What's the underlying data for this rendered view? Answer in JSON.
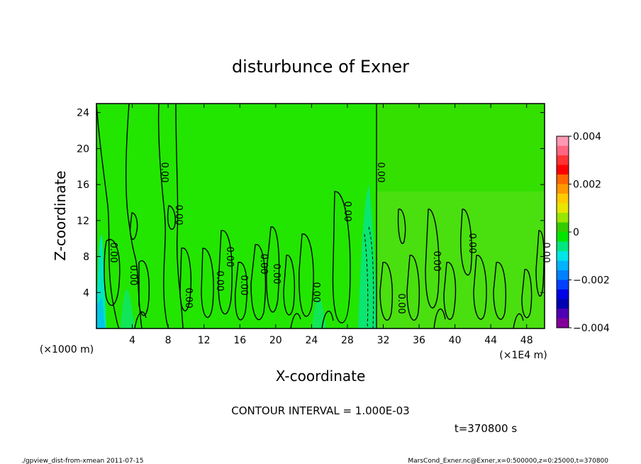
{
  "chart_data": {
    "type": "heatmap",
    "title": "disturbunce of Exner",
    "xlabel": "X-coordinate",
    "ylabel": "Z-coordinate",
    "x_unit_note": "(×1E4 m)",
    "y_unit_note": "(×1000 m)",
    "xlim": [
      0,
      50
    ],
    "ylim": [
      0,
      25
    ],
    "x_ticks": [
      "4",
      "8",
      "12",
      "16",
      "20",
      "24",
      "28",
      "32",
      "36",
      "40",
      "44",
      "48"
    ],
    "x_tick_values": [
      4,
      8,
      12,
      16,
      20,
      24,
      28,
      32,
      36,
      40,
      44,
      48
    ],
    "y_ticks": [
      "4",
      "8",
      "12",
      "16",
      "20",
      "24"
    ],
    "y_tick_values": [
      4,
      8,
      12,
      16,
      20,
      24
    ],
    "colorbar": {
      "range": [
        -0.004,
        0.004
      ],
      "labels": [
        "0.004",
        "0.002",
        "0",
        "−0.002",
        "−0.004"
      ],
      "label_values": [
        0.004,
        0.002,
        0,
        -0.002,
        -0.004
      ],
      "colors": [
        "#ff99b3",
        "#ff6680",
        "#ff3333",
        "#ff0000",
        "#ff6600",
        "#ff9900",
        "#ffcc00",
        "#e6e600",
        "#99e600",
        "#33cc00",
        "#00e600",
        "#00e680",
        "#00e6e6",
        "#00b3ff",
        "#0080ff",
        "#0040ff",
        "#0000e6",
        "#0000b3",
        "#4d00b3",
        "#800099"
      ]
    },
    "contour_interval_text": "CONTOUR INTERVAL = 1.000E-03",
    "contour_labels": [
      "0.00"
    ],
    "time_text": "t=370800 s"
  },
  "footer": {
    "left": "./gpview_dist-from-xmean  2011-07-15",
    "right": "MarsCond_Exner.nc@Exner,x=0:500000,z=0:25000,t=370800"
  }
}
